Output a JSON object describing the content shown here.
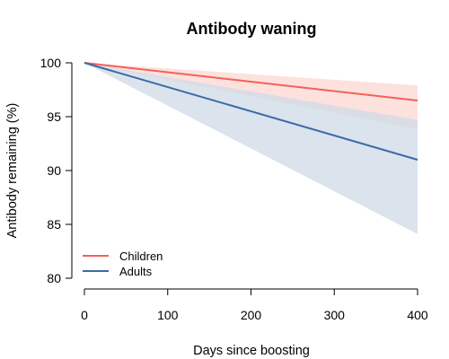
{
  "chart_data": {
    "type": "line",
    "title": "Antibody waning",
    "xlabel": "Days since boosting",
    "ylabel": "Antibody remaining (%)",
    "xlim": [
      0,
      400
    ],
    "ylim": [
      80,
      100
    ],
    "xticks": [
      0,
      100,
      200,
      300,
      400
    ],
    "yticks": [
      80,
      85,
      90,
      95,
      100
    ],
    "grid": false,
    "legend_position": "bottom-left",
    "series": [
      {
        "name": "Children",
        "color": "#F4605A",
        "band_color": "#FCD9D4",
        "x": [
          0,
          400
        ],
        "y": [
          100,
          96.5
        ],
        "lower": [
          100,
          93.8
        ],
        "upper": [
          100,
          97.9
        ]
      },
      {
        "name": "Adults",
        "color": "#3B6AA6",
        "band_color": "#D2DCE8",
        "x": [
          0,
          400
        ],
        "y": [
          100,
          91.0
        ],
        "lower": [
          100,
          84.1
        ],
        "upper": [
          100,
          94.7
        ]
      }
    ]
  }
}
